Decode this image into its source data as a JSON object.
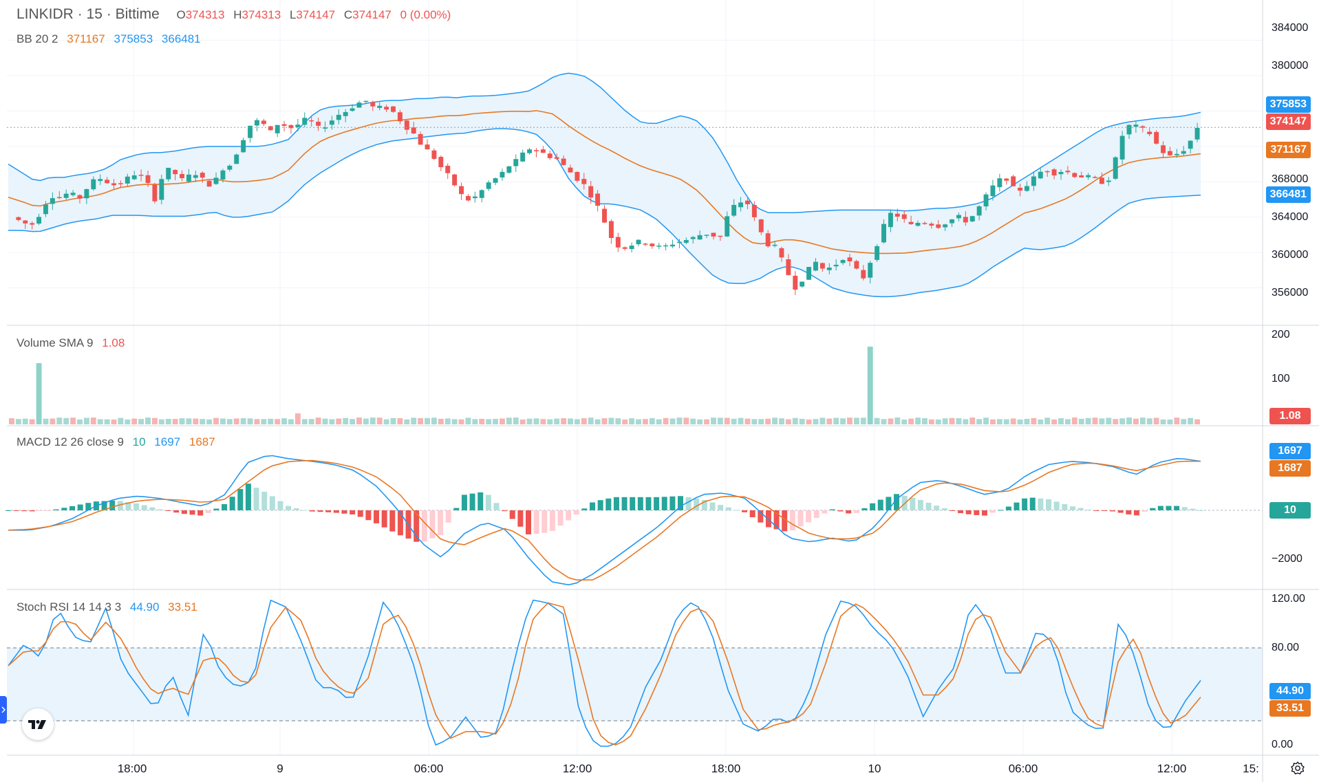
{
  "header": {
    "symbol": "LINKIDR",
    "interval": "15",
    "exchange": "Bittime",
    "open_label": "O",
    "open": "374313",
    "high_label": "H",
    "high": "374313",
    "low_label": "L",
    "low": "374147",
    "close_label": "C",
    "close": "374147",
    "change": "0 (0.00%)"
  },
  "indicators": {
    "bb": {
      "label": "BB 20 2",
      "basis": "371167",
      "upper": "375853",
      "lower": "366481"
    },
    "volume": {
      "label": "Volume SMA 9",
      "value": "1.08"
    },
    "macd": {
      "label": "MACD 12 26 close 9",
      "hist": "10",
      "macd": "1697",
      "signal": "1687"
    },
    "stoch": {
      "label": "Stoch RSI 14 14 3 3",
      "k": "44.90",
      "d": "33.51"
    }
  },
  "colors": {
    "up": "#26a69a",
    "down": "#ef5350",
    "bb": "#2196f3",
    "basis": "#e87722",
    "bb_fill": "#e9f4fc",
    "last_price": "#ef5350"
  },
  "price_axis": {
    "ticks": [
      "384000",
      "380000",
      "368000",
      "364000",
      "360000",
      "356000"
    ]
  },
  "price_badges": {
    "upper": "375853",
    "last": "374147",
    "basis": "371167",
    "lower": "366481"
  },
  "volume_axis": {
    "ticks": [
      "200",
      "100"
    ],
    "badge": "1.08"
  },
  "macd_axis": {
    "ticks": [
      "−2000"
    ],
    "badges": {
      "macd": "1697",
      "signal": "1687",
      "hist": "10"
    }
  },
  "stoch_axis": {
    "ticks": [
      "120.00",
      "80.00",
      "0.00"
    ],
    "badges": {
      "k": "44.90",
      "d": "33.51"
    }
  },
  "time_axis": {
    "labels": [
      "18:00",
      "9",
      "06:00",
      "12:00",
      "18:00",
      "10",
      "06:00",
      "12:00",
      "15:"
    ]
  },
  "chart_data": {
    "type": "candlestick",
    "title": "LINKIDR · 15 · Bittime",
    "ylim": [
      352000,
      387000
    ],
    "close_path": [
      364000,
      363500,
      363000,
      364500,
      366500,
      366200,
      366800,
      366000,
      367500,
      368500,
      368000,
      367500,
      368300,
      369000,
      368200,
      366000,
      369500,
      369000,
      368000,
      369200,
      368200,
      367500,
      369500,
      370000,
      372500,
      374500,
      375000,
      373500,
      374800,
      374000,
      374500,
      375200,
      374000,
      374500,
      375500,
      376000,
      376800,
      377200,
      376200,
      376500,
      375800,
      374500,
      373500,
      372000,
      371000,
      369500,
      368200,
      366500,
      365800,
      366800,
      368000,
      368600,
      369800,
      370500,
      371800,
      371500,
      371000,
      370600,
      369500,
      368500,
      367500,
      365800,
      363500,
      361000,
      360500,
      361000,
      361300,
      360800,
      360500,
      361000,
      361300,
      361500,
      362000,
      362200,
      361500,
      364500,
      365800,
      365500,
      363000,
      361000,
      360500,
      358000,
      356000,
      357500,
      359000,
      358000,
      358500,
      359500,
      358500,
      357000,
      359500,
      362500,
      364500,
      364000,
      363000,
      363500,
      363300,
      363000,
      363600,
      364000,
      363500,
      364800,
      366500,
      368000,
      368500,
      366800,
      367500,
      368500,
      369500,
      369000,
      369300,
      368800,
      368600,
      368400,
      368000,
      368500,
      373000,
      374500,
      374000,
      373500,
      371800,
      370800,
      371200,
      372000,
      374147
    ],
    "bb_upper_path": [
      370000,
      369000,
      368000,
      368500,
      368500,
      368800,
      369000,
      369500,
      370500,
      371000,
      371300,
      371300,
      371500,
      371800,
      372000,
      372000,
      372000,
      372000,
      372000,
      372300,
      372800,
      374500,
      376000,
      376500,
      376600,
      376700,
      377000,
      377200,
      377200,
      377400,
      377400,
      377600,
      377500,
      377700,
      377700,
      377800,
      378000,
      378200,
      379000,
      380000,
      380300,
      380000,
      379000,
      377500,
      376000,
      374800,
      374500,
      375000,
      375500,
      375000,
      373500,
      371000,
      368000,
      365500,
      364500,
      364500,
      364500,
      364600,
      364700,
      364800,
      364800,
      364800,
      364800,
      364800,
      364700,
      364800,
      365000,
      365000,
      365200,
      365500,
      366000,
      367000,
      368000,
      369000,
      370000,
      371000,
      372000,
      373000,
      374000,
      374500,
      374800,
      375000,
      375200,
      375300,
      375500,
      375853
    ],
    "bb_lower_path": [
      362500,
      362500,
      362300,
      362800,
      363300,
      363600,
      363800,
      364200,
      364200,
      364200,
      364100,
      364100,
      364100,
      364300,
      364600,
      364000,
      364000,
      364300,
      364600,
      365800,
      367500,
      368800,
      369800,
      370800,
      371600,
      372200,
      372600,
      372800,
      373000,
      373200,
      373400,
      373500,
      373800,
      374000,
      374000,
      373800,
      373300,
      371500,
      368500,
      366500,
      365500,
      365500,
      365200,
      364800,
      363800,
      362300,
      360500,
      358800,
      357200,
      356500,
      356500,
      357000,
      358000,
      358500,
      358000,
      357000,
      356000,
      355500,
      355200,
      355000,
      355000,
      355200,
      355500,
      355700,
      356000,
      356300,
      357300,
      358500,
      359500,
      360500,
      360300,
      360500,
      360800,
      361800,
      363000,
      364300,
      365500,
      366000,
      366200,
      366300,
      366400,
      366481
    ]
  }
}
